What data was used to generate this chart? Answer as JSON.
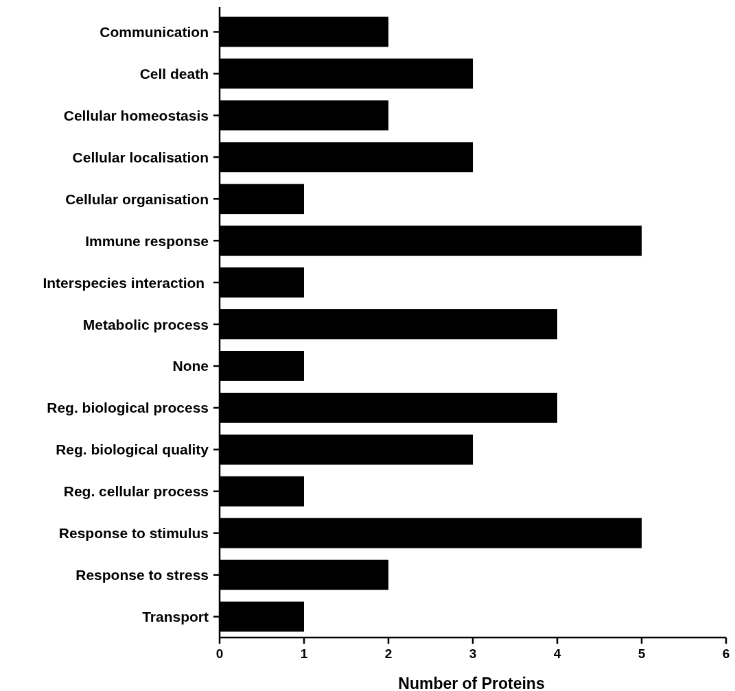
{
  "chart_data": {
    "type": "bar",
    "orientation": "horizontal",
    "xlabel": "Number of Proteins",
    "categories": [
      "Communication",
      "Cell death",
      "Cellular homeostasis",
      "Cellular localisation",
      "Cellular organisation",
      "Immune response",
      "Interspecies interaction ",
      "Metabolic process",
      "None",
      "Reg. biological process",
      "Reg. biological quality",
      "Reg. cellular process",
      "Response to stimulus",
      "Response to stress",
      "Transport"
    ],
    "values": [
      2,
      3,
      2,
      3,
      1,
      5,
      1,
      4,
      1,
      4,
      3,
      1,
      5,
      2,
      1
    ],
    "color": "#000000",
    "xlim": [
      0,
      6
    ],
    "xticks": [
      0,
      1,
      2,
      3,
      4,
      5,
      6
    ],
    "grid": false
  }
}
